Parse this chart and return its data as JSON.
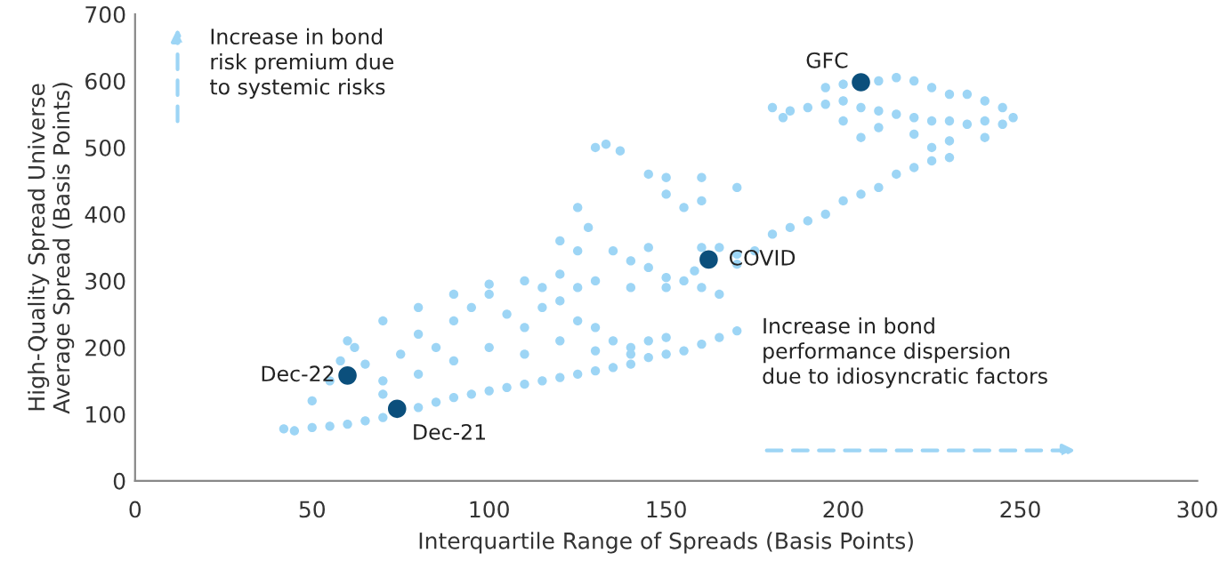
{
  "chart_data": {
    "type": "scatter",
    "xlabel": "Interquartile Range of Spreads (Basis Points)",
    "ylabel": "High-Quality Spread Universe\nAverage Spread (Basis Points)",
    "xlim": [
      0,
      300
    ],
    "ylim": [
      0,
      700
    ],
    "xticks": [
      0,
      50,
      100,
      150,
      200,
      250,
      300
    ],
    "yticks": [
      0,
      100,
      200,
      300,
      400,
      500,
      600,
      700
    ],
    "grid": false,
    "marker": "circle",
    "series": [
      {
        "color": "#9dd5f5",
        "x": [
          42,
          45,
          50,
          55,
          60,
          65,
          70,
          80,
          85,
          90,
          95,
          100,
          105,
          110,
          115,
          120,
          125,
          130,
          135,
          140,
          145,
          150,
          155,
          160,
          165,
          170,
          50,
          55,
          58,
          62,
          65,
          70,
          75,
          80,
          85,
          90,
          95,
          100,
          105,
          110,
          115,
          120,
          125,
          130,
          135,
          140,
          145,
          150,
          100,
          90,
          80,
          70,
          110,
          120,
          130,
          140,
          60,
          70,
          80,
          90,
          100,
          110,
          115,
          125,
          130,
          140,
          150,
          120,
          125,
          120,
          128,
          125,
          130,
          133,
          137,
          145,
          150,
          150,
          160,
          155,
          160,
          170,
          160,
          165,
          170,
          175,
          180,
          185,
          190,
          195,
          200,
          205,
          210,
          215,
          220,
          225,
          230,
          140,
          145,
          150,
          155,
          160,
          165,
          170,
          145,
          135,
          158,
          180,
          185,
          190,
          195,
          200,
          205,
          210,
          215,
          220,
          225,
          230,
          235,
          240,
          245,
          248,
          195,
          200,
          210,
          215,
          220,
          225,
          230,
          235,
          240,
          245,
          200,
          210,
          220,
          230,
          240,
          183,
          205,
          225
        ],
        "values": [
          78,
          75,
          80,
          82,
          85,
          90,
          95,
          110,
          118,
          125,
          130,
          135,
          140,
          145,
          150,
          155,
          160,
          165,
          170,
          175,
          185,
          190,
          195,
          205,
          215,
          225,
          120,
          150,
          180,
          200,
          175,
          150,
          190,
          220,
          200,
          240,
          260,
          280,
          250,
          230,
          260,
          270,
          240,
          230,
          210,
          200,
          210,
          215,
          200,
          180,
          160,
          130,
          190,
          210,
          195,
          190,
          210,
          240,
          260,
          280,
          295,
          300,
          290,
          290,
          300,
          290,
          290,
          310,
          345,
          360,
          380,
          410,
          500,
          505,
          495,
          460,
          455,
          430,
          455,
          410,
          420,
          440,
          350,
          350,
          340,
          345,
          370,
          380,
          390,
          400,
          420,
          430,
          440,
          460,
          470,
          480,
          485,
          330,
          320,
          305,
          300,
          290,
          280,
          325,
          350,
          345,
          315,
          560,
          555,
          560,
          565,
          570,
          560,
          555,
          550,
          545,
          540,
          540,
          535,
          540,
          535,
          545,
          590,
          595,
          600,
          605,
          600,
          590,
          580,
          580,
          570,
          560,
          540,
          530,
          520,
          510,
          515,
          545,
          515,
          500
        ]
      },
      {
        "color": "#0b4f7c",
        "x": [
          60,
          74,
          162,
          205
        ],
        "values": [
          158,
          108,
          332,
          598
        ]
      }
    ],
    "annotations": [
      {
        "text": "Dec-22",
        "x": 60,
        "y": 158
      },
      {
        "text": "Dec-21",
        "x": 74,
        "y": 108
      },
      {
        "text": "COVID",
        "x": 162,
        "y": 332
      },
      {
        "text": "GFC",
        "x": 205,
        "y": 598
      },
      "Increase in bond\nrisk premium due\nto systemic risks",
      "Increase in bond\nperformance dispersion\ndue to idiosyncratic factors"
    ]
  }
}
